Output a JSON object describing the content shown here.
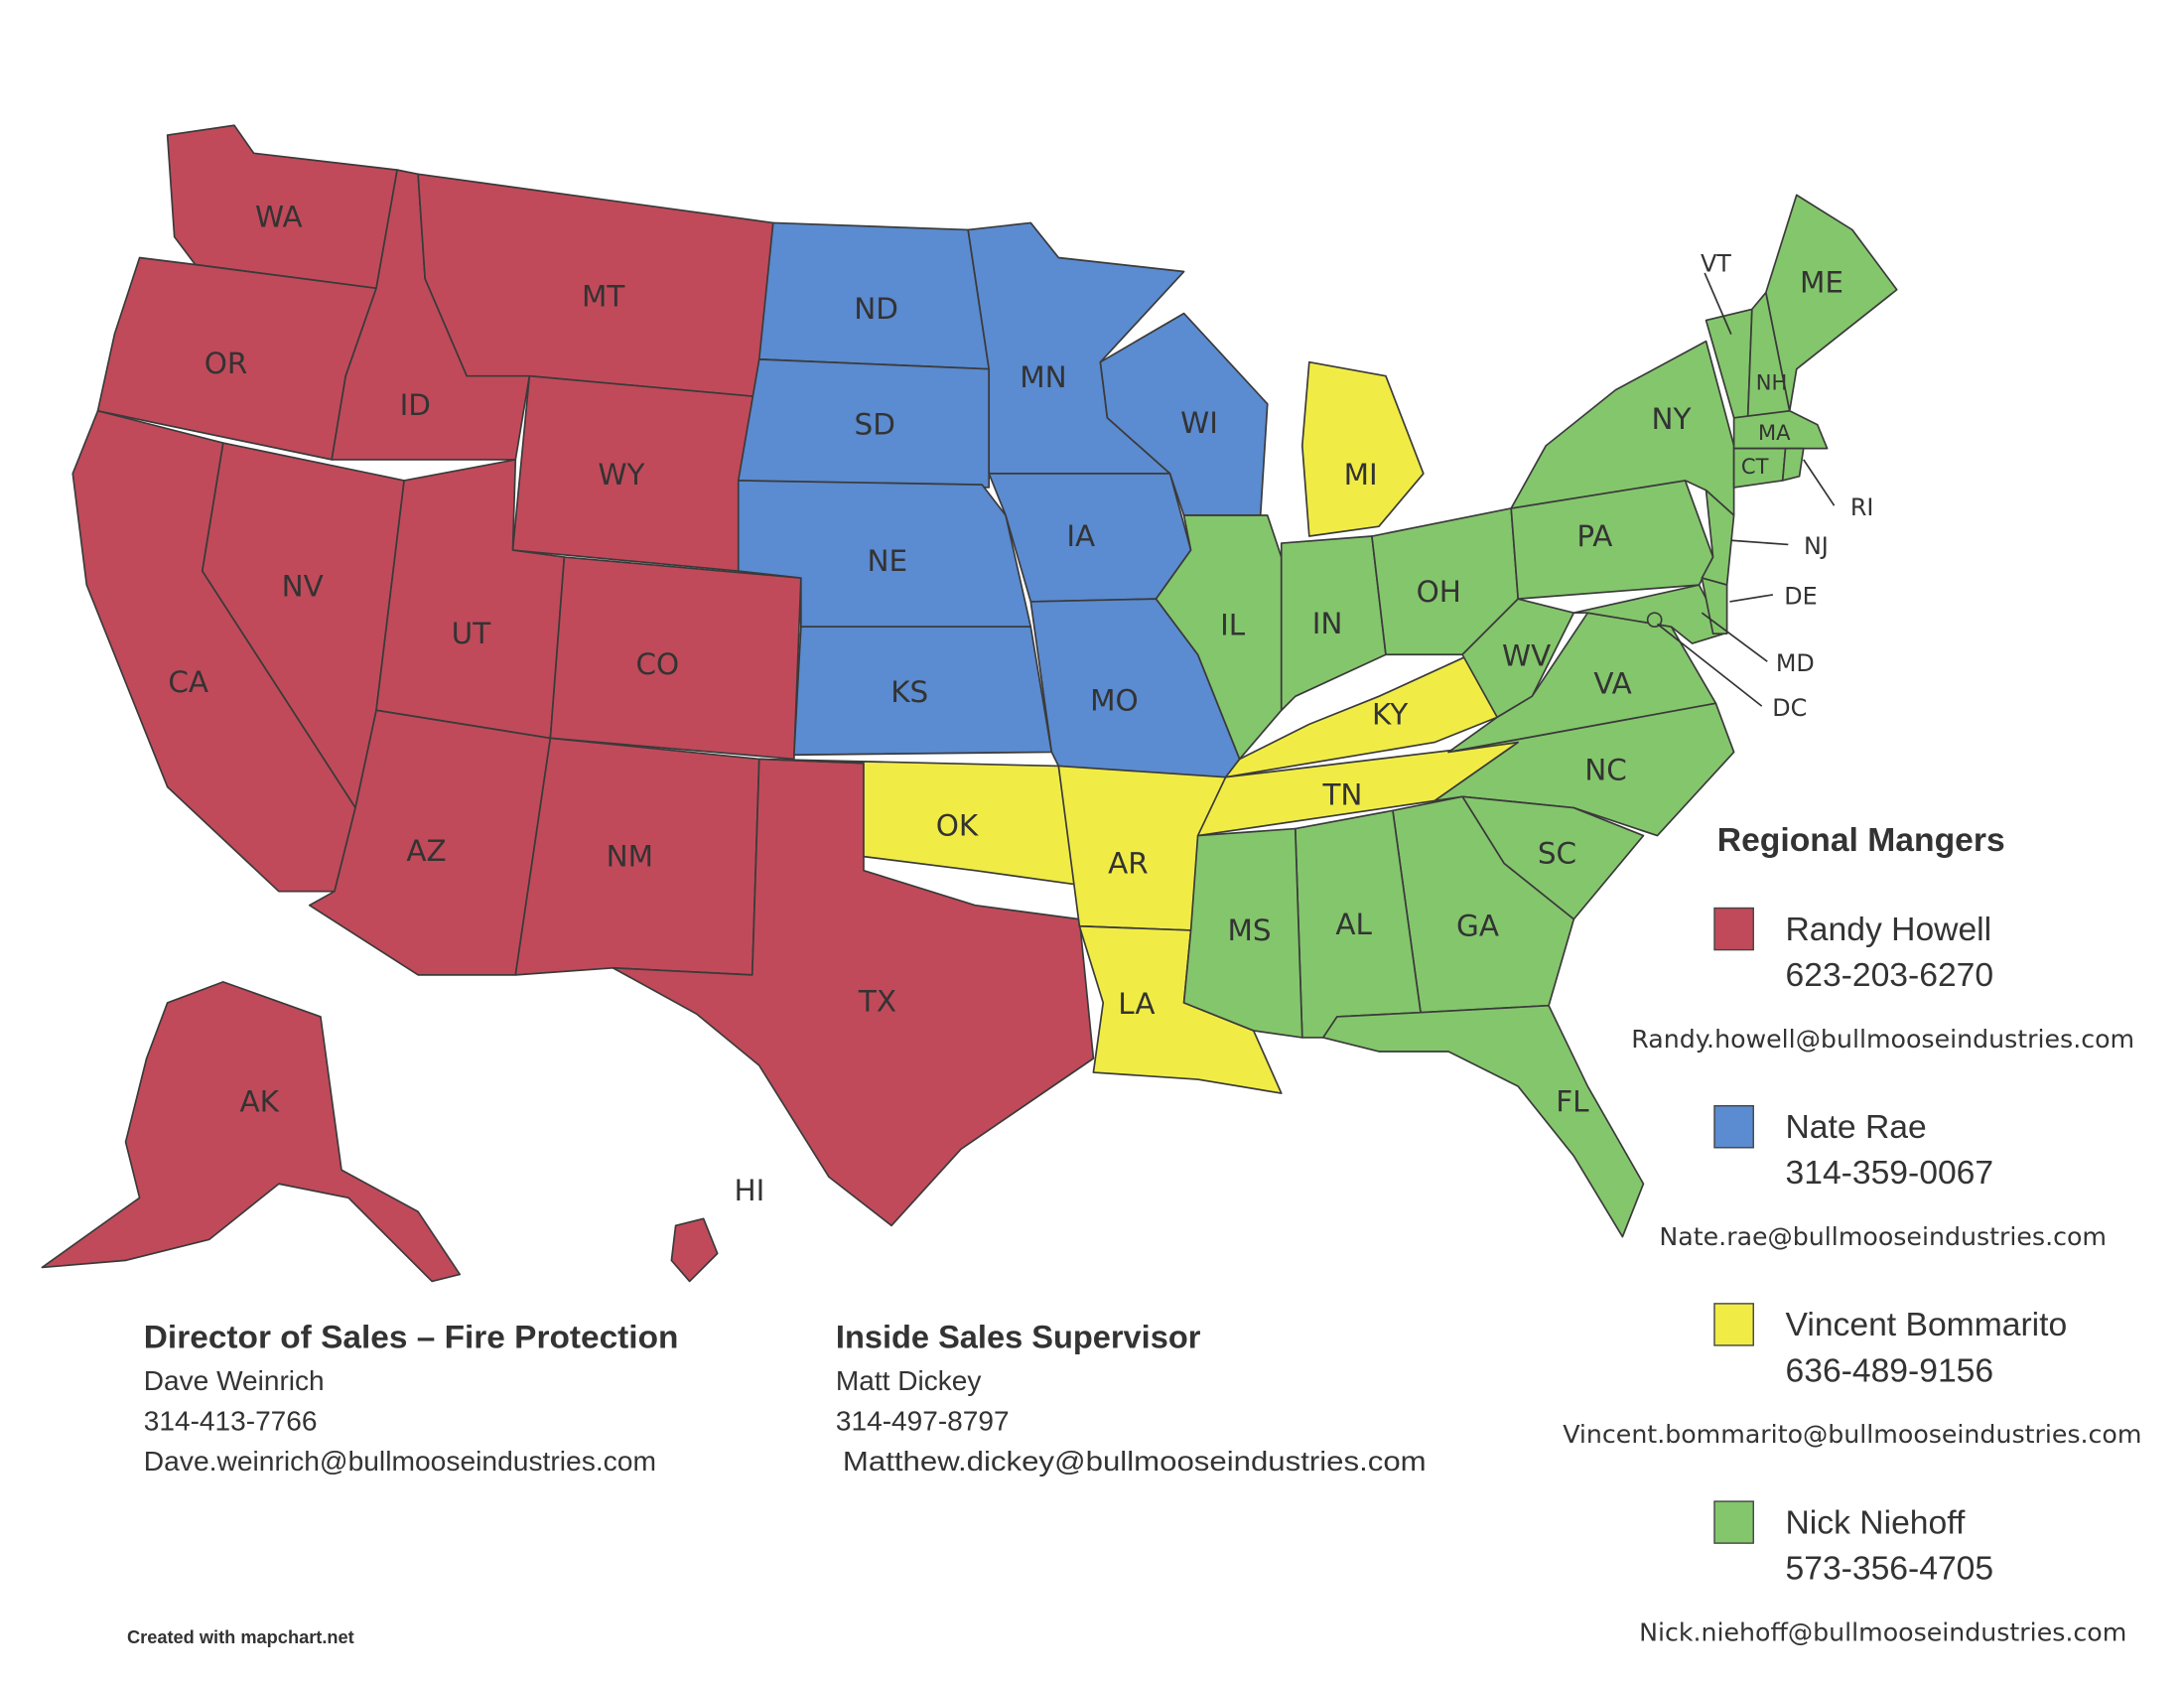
{
  "regions": {
    "randy": {
      "color": "#c04a5a"
    },
    "nate": {
      "color": "#5b8bd0"
    },
    "vincent": {
      "color": "#f1ec45"
    },
    "nick": {
      "color": "#84c66c"
    }
  },
  "states": [
    {
      "code": "WA",
      "region": "randy"
    },
    {
      "code": "OR",
      "region": "randy"
    },
    {
      "code": "ID",
      "region": "randy"
    },
    {
      "code": "MT",
      "region": "randy"
    },
    {
      "code": "WY",
      "region": "randy"
    },
    {
      "code": "NV",
      "region": "randy"
    },
    {
      "code": "CA",
      "region": "randy"
    },
    {
      "code": "UT",
      "region": "randy"
    },
    {
      "code": "CO",
      "region": "randy"
    },
    {
      "code": "AZ",
      "region": "randy"
    },
    {
      "code": "NM",
      "region": "randy"
    },
    {
      "code": "TX",
      "region": "randy"
    },
    {
      "code": "AK",
      "region": "randy"
    },
    {
      "code": "HI",
      "region": "randy"
    },
    {
      "code": "ND",
      "region": "nate"
    },
    {
      "code": "SD",
      "region": "nate"
    },
    {
      "code": "NE",
      "region": "nate"
    },
    {
      "code": "KS",
      "region": "nate"
    },
    {
      "code": "MN",
      "region": "nate"
    },
    {
      "code": "IA",
      "region": "nate"
    },
    {
      "code": "MO",
      "region": "nate"
    },
    {
      "code": "WI",
      "region": "nate"
    },
    {
      "code": "OK",
      "region": "vincent"
    },
    {
      "code": "AR",
      "region": "vincent"
    },
    {
      "code": "LA",
      "region": "vincent"
    },
    {
      "code": "MI",
      "region": "vincent"
    },
    {
      "code": "KY",
      "region": "vincent"
    },
    {
      "code": "TN",
      "region": "vincent"
    },
    {
      "code": "IL",
      "region": "nick"
    },
    {
      "code": "IN",
      "region": "nick"
    },
    {
      "code": "OH",
      "region": "nick"
    },
    {
      "code": "WV",
      "region": "nick"
    },
    {
      "code": "VA",
      "region": "nick"
    },
    {
      "code": "NC",
      "region": "nick"
    },
    {
      "code": "SC",
      "region": "nick"
    },
    {
      "code": "GA",
      "region": "nick"
    },
    {
      "code": "AL",
      "region": "nick"
    },
    {
      "code": "MS",
      "region": "nick"
    },
    {
      "code": "FL",
      "region": "nick"
    },
    {
      "code": "PA",
      "region": "nick"
    },
    {
      "code": "NY",
      "region": "nick"
    },
    {
      "code": "NJ",
      "region": "nick"
    },
    {
      "code": "MD",
      "region": "nick"
    },
    {
      "code": "DE",
      "region": "nick"
    },
    {
      "code": "DC",
      "region": "nick"
    },
    {
      "code": "VT",
      "region": "nick"
    },
    {
      "code": "NH",
      "region": "nick"
    },
    {
      "code": "ME",
      "region": "nick"
    },
    {
      "code": "MA",
      "region": "nick"
    },
    {
      "code": "CT",
      "region": "nick"
    },
    {
      "code": "RI",
      "region": "nick"
    }
  ],
  "legend": {
    "title": "Regional Mangers",
    "managers": [
      {
        "name": "Randy Howell",
        "phone": "623-203-6270",
        "email": "Randy.howell@bullmooseindustries.com",
        "region": "randy"
      },
      {
        "name": "Nate Rae",
        "phone": "314-359-0067",
        "email": "Nate.rae@bullmooseindustries.com",
        "region": "nate"
      },
      {
        "name": "Vincent Bommarito",
        "phone": "636-489-9156",
        "email": "Vincent.bommarito@bullmooseindustries.com",
        "region": "vincent"
      },
      {
        "name": "Nick Niehoff",
        "phone": "573-356-4705",
        "email": "Nick.niehoff@bullmooseindustries.com",
        "region": "nick"
      }
    ]
  },
  "contacts": [
    {
      "title": "Director of Sales – Fire Protection",
      "name": "Dave Weinrich",
      "phone": "314-413-7766",
      "email": "Dave.weinrich@bullmooseindustries.com"
    },
    {
      "title": "Inside Sales Supervisor",
      "name": "Matt Dickey",
      "phone": "314-497-8797",
      "email": "Matthew.dickey@bullmooseindustries.com"
    }
  ],
  "footer": "Created with mapchart.net"
}
